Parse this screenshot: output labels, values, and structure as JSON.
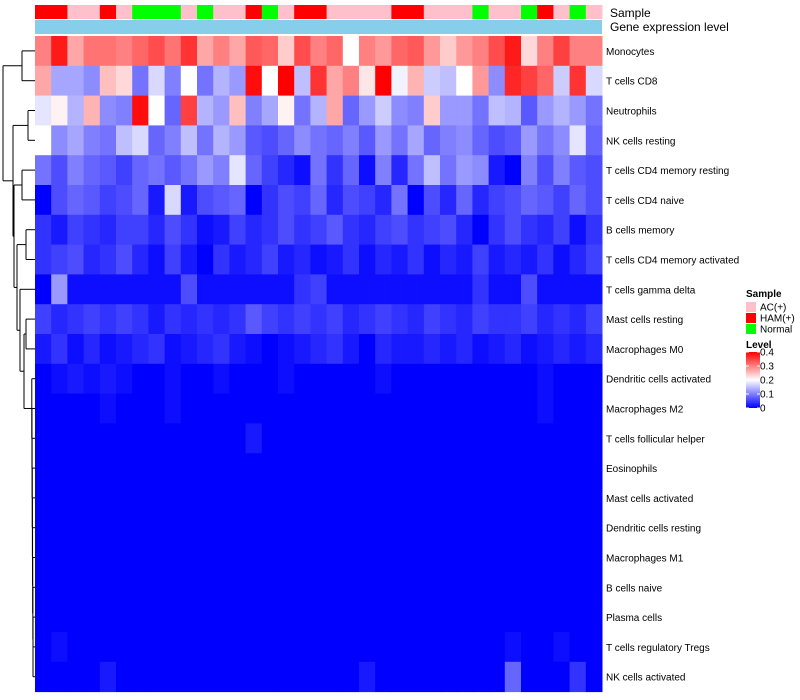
{
  "chart_data": {
    "type": "heatmap",
    "title": "",
    "annotation_labels": [
      "Sample",
      "Gene expression level"
    ],
    "rows": [
      "Monocytes",
      "T cells CD8",
      "Neutrophils",
      "NK cells resting",
      "T cells CD4 memory resting",
      "T cells CD4 naive",
      "B cells memory",
      "T cells CD4 memory activated",
      "T cells gamma delta",
      "Mast cells resting",
      "Macrophages M0",
      "Dendritic cells activated",
      "Macrophages M2",
      "T cells follicular helper",
      "Eosinophils",
      "Mast cells activated",
      "Dendritic cells resting",
      "Macrophages M1",
      "B cells naive",
      "Plasma cells",
      "T cells regulatory  Tregs",
      "NK cells activated"
    ],
    "sample_groups": [
      "HAM(+)",
      "HAM(+)",
      "AC(+)",
      "AC(+)",
      "HAM(+)",
      "AC(+)",
      "Normal",
      "Normal",
      "Normal",
      "AC(+)",
      "Normal",
      "AC(+)",
      "AC(+)",
      "HAM(+)",
      "Normal",
      "AC(+)",
      "HAM(+)",
      "HAM(+)",
      "AC(+)",
      "AC(+)",
      "AC(+)",
      "AC(+)",
      "HAM(+)",
      "HAM(+)",
      "AC(+)",
      "AC(+)",
      "AC(+)",
      "Normal",
      "AC(+)",
      "AC(+)",
      "Normal",
      "HAM(+)",
      "AC(+)",
      "Normal",
      "AC(+)"
    ],
    "values": [
      [
        0.3,
        0.38,
        0.27,
        0.31,
        0.31,
        0.3,
        0.32,
        0.34,
        0.31,
        0.36,
        0.27,
        0.3,
        0.27,
        0.33,
        0.32,
        0.24,
        0.34,
        0.3,
        0.32,
        0.2,
        0.3,
        0.28,
        0.32,
        0.33,
        0.28,
        0.24,
        0.28,
        0.3,
        0.34,
        0.38,
        0.23,
        0.3,
        0.35,
        0.3,
        0.3
      ],
      [
        0.27,
        0.13,
        0.13,
        0.11,
        0.25,
        0.23,
        0.09,
        0.17,
        0.1,
        0.2,
        0.09,
        0.14,
        0.12,
        0.39,
        0.2,
        0.4,
        0.15,
        0.36,
        0.27,
        0.3,
        0.22,
        0.4,
        0.19,
        0.26,
        0.16,
        0.15,
        0.2,
        0.28,
        0.11,
        0.37,
        0.35,
        0.32,
        0.16,
        0.36,
        0.17
      ],
      [
        0.18,
        0.21,
        0.14,
        0.26,
        0.11,
        0.1,
        0.39,
        0.2,
        0.08,
        0.35,
        0.14,
        0.12,
        0.25,
        0.1,
        0.13,
        0.21,
        0.09,
        0.14,
        0.27,
        0.08,
        0.12,
        0.16,
        0.11,
        0.1,
        0.24,
        0.12,
        0.12,
        0.09,
        0.15,
        0.14,
        0.07,
        0.12,
        0.14,
        0.12,
        0.09
      ],
      [
        0.2,
        0.11,
        0.13,
        0.1,
        0.09,
        0.15,
        0.17,
        0.08,
        0.1,
        0.15,
        0.09,
        0.14,
        0.12,
        0.07,
        0.06,
        0.08,
        0.11,
        0.09,
        0.08,
        0.1,
        0.07,
        0.12,
        0.09,
        0.13,
        0.08,
        0.1,
        0.11,
        0.08,
        0.06,
        0.07,
        0.12,
        0.09,
        0.11,
        0.18,
        0.08
      ],
      [
        0.09,
        0.06,
        0.1,
        0.08,
        0.07,
        0.05,
        0.08,
        0.09,
        0.07,
        0.09,
        0.12,
        0.1,
        0.18,
        0.08,
        0.05,
        0.03,
        0.01,
        0.09,
        0.04,
        0.08,
        0.01,
        0.1,
        0.03,
        0.09,
        0.15,
        0.09,
        0.12,
        0.11,
        0.02,
        0.0,
        0.1,
        0.06,
        0.1,
        0.07,
        0.06
      ],
      [
        0.0,
        0.06,
        0.08,
        0.07,
        0.05,
        0.06,
        0.08,
        0.02,
        0.17,
        0.02,
        0.06,
        0.07,
        0.08,
        0.0,
        0.04,
        0.06,
        0.05,
        0.08,
        0.03,
        0.06,
        0.05,
        0.03,
        0.09,
        0.0,
        0.06,
        0.03,
        0.08,
        0.03,
        0.05,
        0.06,
        0.08,
        0.07,
        0.05,
        0.08,
        0.06
      ],
      [
        0.04,
        0.02,
        0.05,
        0.04,
        0.03,
        0.05,
        0.05,
        0.03,
        0.06,
        0.04,
        0.01,
        0.02,
        0.05,
        0.03,
        0.04,
        0.06,
        0.04,
        0.05,
        0.07,
        0.04,
        0.03,
        0.05,
        0.06,
        0.04,
        0.05,
        0.06,
        0.03,
        0.0,
        0.04,
        0.06,
        0.04,
        0.03,
        0.05,
        0.01,
        0.04
      ],
      [
        0.04,
        0.05,
        0.06,
        0.03,
        0.04,
        0.06,
        0.03,
        0.01,
        0.05,
        0.02,
        0.0,
        0.04,
        0.02,
        0.03,
        0.05,
        0.02,
        0.03,
        0.01,
        0.02,
        0.04,
        0.01,
        0.03,
        0.02,
        0.04,
        0.01,
        0.03,
        0.02,
        0.05,
        0.02,
        0.03,
        0.02,
        0.04,
        0.01,
        0.03,
        0.05
      ],
      [
        0.0,
        0.12,
        0.01,
        0.01,
        0.01,
        0.01,
        0.01,
        0.01,
        0.01,
        0.06,
        0.01,
        0.01,
        0.01,
        0.01,
        0.01,
        0.01,
        0.04,
        0.05,
        0.01,
        0.01,
        0.01,
        0.01,
        0.01,
        0.01,
        0.01,
        0.01,
        0.01,
        0.04,
        0.01,
        0.01,
        0.06,
        0.01,
        0.01,
        0.01,
        0.01
      ],
      [
        0.05,
        0.03,
        0.04,
        0.05,
        0.04,
        0.05,
        0.04,
        0.02,
        0.04,
        0.03,
        0.04,
        0.03,
        0.04,
        0.07,
        0.05,
        0.04,
        0.05,
        0.04,
        0.05,
        0.03,
        0.04,
        0.05,
        0.04,
        0.03,
        0.05,
        0.04,
        0.03,
        0.05,
        0.04,
        0.04,
        0.05,
        0.03,
        0.04,
        0.03,
        0.05
      ],
      [
        0.02,
        0.04,
        0.01,
        0.03,
        0.01,
        0.02,
        0.03,
        0.04,
        0.01,
        0.02,
        0.03,
        0.04,
        0.02,
        0.01,
        0.0,
        0.01,
        0.02,
        0.03,
        0.04,
        0.02,
        0.0,
        0.03,
        0.02,
        0.02,
        0.03,
        0.02,
        0.03,
        0.01,
        0.02,
        0.03,
        0.01,
        0.02,
        0.03,
        0.02,
        0.03
      ],
      [
        0.0,
        0.01,
        0.02,
        0.01,
        0.02,
        0.01,
        0.0,
        0.0,
        0.01,
        0.0,
        0.0,
        0.01,
        0.0,
        0.0,
        0.0,
        0.01,
        0.0,
        0.0,
        0.0,
        0.0,
        0.0,
        0.01,
        0.0,
        0.0,
        0.0,
        0.0,
        0.0,
        0.0,
        0.0,
        0.0,
        0.0,
        0.01,
        0.0,
        0.0,
        0.0
      ],
      [
        0.0,
        0.0,
        0.0,
        0.0,
        0.01,
        0.0,
        0.0,
        0.0,
        0.01,
        0.0,
        0.0,
        0.0,
        0.0,
        0.0,
        0.0,
        0.0,
        0.0,
        0.0,
        0.0,
        0.0,
        0.0,
        0.0,
        0.0,
        0.0,
        0.0,
        0.0,
        0.0,
        0.0,
        0.0,
        0.0,
        0.0,
        0.01,
        0.0,
        0.0,
        0.0
      ],
      [
        0.0,
        0.0,
        0.0,
        0.0,
        0.0,
        0.0,
        0.0,
        0.0,
        0.0,
        0.0,
        0.0,
        0.0,
        0.0,
        0.02,
        0.0,
        0.0,
        0.0,
        0.0,
        0.0,
        0.0,
        0.0,
        0.0,
        0.0,
        0.0,
        0.0,
        0.0,
        0.0,
        0.0,
        0.0,
        0.0,
        0.0,
        0.0,
        0.0,
        0.0,
        0.0
      ],
      [
        0.0,
        0.0,
        0.0,
        0.0,
        0.0,
        0.0,
        0.0,
        0.0,
        0.0,
        0.0,
        0.0,
        0.0,
        0.0,
        0.0,
        0.0,
        0.0,
        0.0,
        0.0,
        0.0,
        0.0,
        0.0,
        0.0,
        0.0,
        0.0,
        0.0,
        0.0,
        0.0,
        0.0,
        0.0,
        0.0,
        0.0,
        0.0,
        0.0,
        0.0,
        0.0
      ],
      [
        0.0,
        0.0,
        0.0,
        0.0,
        0.0,
        0.0,
        0.0,
        0.0,
        0.0,
        0.0,
        0.0,
        0.0,
        0.0,
        0.0,
        0.0,
        0.0,
        0.0,
        0.0,
        0.0,
        0.0,
        0.0,
        0.0,
        0.0,
        0.0,
        0.0,
        0.0,
        0.0,
        0.0,
        0.0,
        0.0,
        0.0,
        0.0,
        0.0,
        0.0,
        0.0
      ],
      [
        0.0,
        0.0,
        0.0,
        0.0,
        0.0,
        0.0,
        0.0,
        0.0,
        0.0,
        0.0,
        0.0,
        0.0,
        0.0,
        0.0,
        0.0,
        0.0,
        0.0,
        0.0,
        0.0,
        0.0,
        0.0,
        0.0,
        0.0,
        0.0,
        0.0,
        0.0,
        0.0,
        0.0,
        0.0,
        0.0,
        0.0,
        0.0,
        0.0,
        0.0,
        0.0
      ],
      [
        0.0,
        0.0,
        0.0,
        0.0,
        0.0,
        0.0,
        0.0,
        0.0,
        0.0,
        0.0,
        0.0,
        0.0,
        0.0,
        0.0,
        0.0,
        0.0,
        0.0,
        0.0,
        0.0,
        0.0,
        0.0,
        0.0,
        0.0,
        0.0,
        0.0,
        0.0,
        0.0,
        0.0,
        0.0,
        0.0,
        0.0,
        0.0,
        0.0,
        0.0,
        0.0
      ],
      [
        0.0,
        0.0,
        0.0,
        0.0,
        0.0,
        0.0,
        0.0,
        0.0,
        0.0,
        0.0,
        0.0,
        0.0,
        0.0,
        0.0,
        0.0,
        0.0,
        0.0,
        0.0,
        0.0,
        0.0,
        0.0,
        0.0,
        0.0,
        0.0,
        0.0,
        0.0,
        0.0,
        0.0,
        0.0,
        0.0,
        0.0,
        0.0,
        0.0,
        0.0,
        0.0
      ],
      [
        0.0,
        0.0,
        0.0,
        0.0,
        0.0,
        0.0,
        0.0,
        0.0,
        0.0,
        0.0,
        0.0,
        0.0,
        0.0,
        0.0,
        0.0,
        0.0,
        0.0,
        0.0,
        0.0,
        0.0,
        0.0,
        0.0,
        0.0,
        0.0,
        0.0,
        0.0,
        0.0,
        0.0,
        0.0,
        0.0,
        0.0,
        0.0,
        0.0,
        0.0,
        0.0
      ],
      [
        0.0,
        0.01,
        0.0,
        0.0,
        0.0,
        0.0,
        0.0,
        0.0,
        0.0,
        0.0,
        0.0,
        0.0,
        0.0,
        0.0,
        0.0,
        0.0,
        0.0,
        0.0,
        0.0,
        0.0,
        0.0,
        0.0,
        0.0,
        0.0,
        0.0,
        0.0,
        0.0,
        0.0,
        0.0,
        0.01,
        0.0,
        0.0,
        0.01,
        0.0,
        0.0
      ],
      [
        0.0,
        0.0,
        0.0,
        0.0,
        0.02,
        0.0,
        0.0,
        0.0,
        0.0,
        0.0,
        0.0,
        0.0,
        0.0,
        0.0,
        0.0,
        0.0,
        0.0,
        0.0,
        0.0,
        0.0,
        0.02,
        0.0,
        0.0,
        0.0,
        0.0,
        0.0,
        0.0,
        0.0,
        0.0,
        0.08,
        0.0,
        0.0,
        0.0,
        0.04,
        0.0
      ]
    ],
    "legend_sample": {
      "title": "Sample",
      "entries": [
        {
          "label": "AC(+)",
          "color": "#ffc0cb"
        },
        {
          "label": "HAM(+)",
          "color": "#ff0000"
        },
        {
          "label": "Normal",
          "color": "#00ff00"
        }
      ]
    },
    "legend_level": {
      "title": "Level",
      "ticks": [
        "0.4",
        "0.3",
        "0.2",
        "0.1",
        "0"
      ],
      "tick_values": [
        0.4,
        0.3,
        0.2,
        0.1,
        0.0
      ],
      "range": [
        0,
        0.4
      ]
    },
    "colors": {
      "low": "#0000ff",
      "mid": "#ffffff",
      "high": "#ff0000",
      "midpoint": 0.2,
      "expression_bar": "#87ceeb"
    }
  }
}
